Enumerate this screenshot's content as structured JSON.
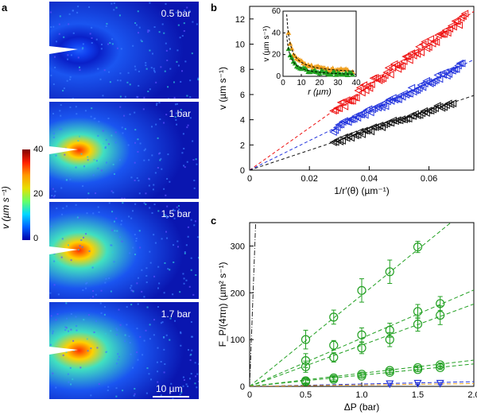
{
  "panels": {
    "a": "a",
    "b": "b",
    "c": "c"
  },
  "panel_a": {
    "tiles": [
      {
        "label": "0.5 bar",
        "intensity": 0.15
      },
      {
        "label": "1 bar",
        "intensity": 0.55
      },
      {
        "label": "1.5 bar",
        "intensity": 0.85
      },
      {
        "label": "1.7 bar",
        "intensity": 0.95
      }
    ],
    "scale_bar": "10 µm",
    "colorbar": {
      "title": "v (µm s⁻¹)",
      "ticks": [
        "40",
        "20",
        "0"
      ]
    }
  },
  "chart_data": [
    {
      "id": "b-main",
      "type": "scatter",
      "xlabel": "1/r′(θ) (µm⁻¹)",
      "ylabel": "v (µm s⁻¹)",
      "xlim": [
        0,
        0.075
      ],
      "ylim": [
        0,
        13
      ],
      "xticks": [
        "0",
        "0.02",
        "0.04",
        "0.06"
      ],
      "yticks": [
        "0",
        "2",
        "4",
        "6",
        "8",
        "10",
        "12"
      ],
      "series": [
        {
          "name": "red",
          "color": "#ee1111",
          "slope": 168,
          "xrange": [
            0.028,
            0.072
          ],
          "noise": 0.35,
          "n": 70
        },
        {
          "name": "blue",
          "color": "#2233dd",
          "slope": 117,
          "xrange": [
            0.028,
            0.071
          ],
          "noise": 0.25,
          "n": 70
        },
        {
          "name": "black",
          "color": "#111111",
          "slope": 79,
          "xrange": [
            0.028,
            0.068
          ],
          "noise": 0.15,
          "n": 55
        }
      ]
    },
    {
      "id": "b-inset",
      "type": "scatter",
      "xlabel": "r (µm)",
      "ylabel": "v (µm s⁻¹)",
      "xlim": [
        0,
        40
      ],
      "ylim": [
        0,
        60
      ],
      "xticks": [
        "0",
        "10",
        "20",
        "30",
        "40"
      ],
      "yticks": [
        "0",
        "20",
        "40",
        "60"
      ],
      "series": [
        {
          "name": "orange",
          "color": "#f0a020",
          "amp": 110,
          "offset": 2,
          "n": 40
        },
        {
          "name": "green",
          "color": "#22a022",
          "amp": 75,
          "offset": 0,
          "n": 40
        }
      ]
    },
    {
      "id": "c",
      "type": "scatter",
      "xlabel": "ΔP (bar)",
      "ylabel": "F_P/(4πη) (µm² s⁻¹)",
      "xlim": [
        0,
        2.0
      ],
      "ylim": [
        0,
        350
      ],
      "xticks": [
        "0",
        "0.5",
        "1.0",
        "1.5",
        "2.0"
      ],
      "yticks": [
        "0",
        "100",
        "200",
        "300"
      ],
      "series": [
        {
          "name": "g1",
          "color": "#22a022",
          "slope": 195,
          "x": [
            0.5,
            0.75,
            1.0,
            1.25,
            1.5
          ],
          "y": [
            100,
            148,
            205,
            245,
            298
          ],
          "err": [
            20,
            15,
            25,
            25,
            12
          ]
        },
        {
          "name": "g2",
          "color": "#22a022",
          "slope": 103,
          "x": [
            0.5,
            0.75,
            1.0,
            1.25,
            1.5,
            1.7
          ],
          "y": [
            55,
            88,
            110,
            120,
            160,
            177
          ],
          "err": [
            15,
            10,
            15,
            15,
            15,
            15
          ]
        },
        {
          "name": "g3",
          "color": "#22a022",
          "slope": 88,
          "x": [
            0.5,
            0.75,
            1.0,
            1.25,
            1.5,
            1.7
          ],
          "y": [
            42,
            62,
            82,
            100,
            133,
            152
          ],
          "err": [
            12,
            10,
            12,
            15,
            15,
            20
          ]
        },
        {
          "name": "g4",
          "color": "#22a022",
          "slope": 28,
          "x": [
            0.5,
            0.75,
            1.0,
            1.25,
            1.5,
            1.7
          ],
          "y": [
            12,
            18,
            26,
            34,
            40,
            46
          ],
          "err": [
            4,
            4,
            4,
            4,
            4,
            4
          ]
        },
        {
          "name": "g5",
          "color": "#22a022",
          "slope": 24,
          "x": [
            0.5,
            0.75,
            1.0,
            1.25,
            1.5,
            1.7
          ],
          "y": [
            10,
            15,
            22,
            30,
            36,
            40
          ],
          "err": [
            4,
            4,
            4,
            4,
            4,
            4
          ]
        },
        {
          "name": "blue-tri",
          "color": "#2233dd",
          "slope": 5,
          "x": [
            1.25,
            1.5,
            1.7
          ],
          "y": [
            5,
            6,
            6
          ],
          "err": [
            2,
            2,
            2
          ]
        },
        {
          "name": "orange-line",
          "color": "#f0a020",
          "slope": 3,
          "x": [],
          "y": [],
          "err": []
        },
        {
          "name": "dashdot",
          "color": "#222222",
          "slope": 6500,
          "x": [],
          "y": [],
          "err": []
        }
      ]
    }
  ]
}
